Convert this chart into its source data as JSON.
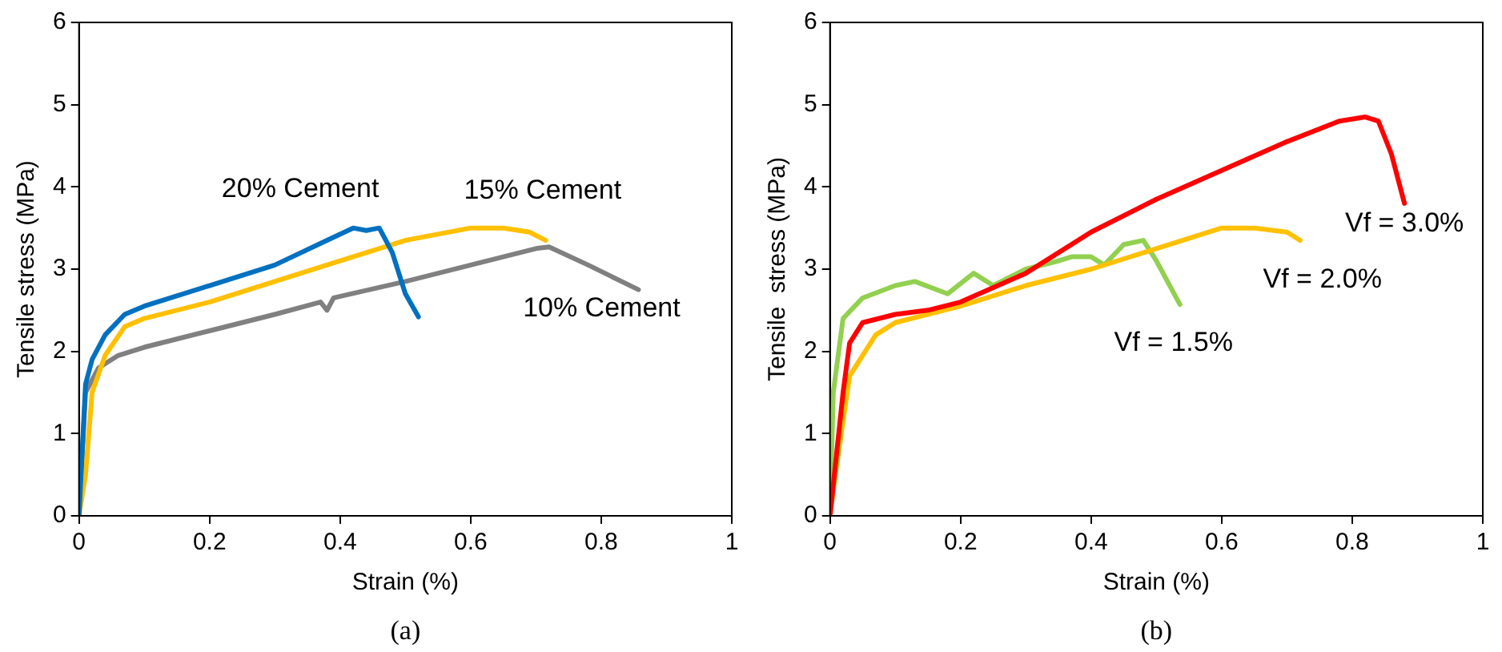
{
  "chart_data": [
    {
      "type": "line",
      "xlabel": "Strain (%)",
      "ylabel": "Tensile stress (MPa)",
      "xlim": [
        0,
        1
      ],
      "ylim": [
        0,
        6
      ],
      "xticks": [
        0,
        0.2,
        0.4,
        0.6,
        0.8,
        1
      ],
      "yticks": [
        0,
        1,
        2,
        3,
        4,
        5,
        6
      ],
      "grid": false,
      "legend": false,
      "marker": "none",
      "line_style": "solid",
      "series": [
        {
          "name": "20% Cement",
          "color": "#0070c0",
          "x": [
            0,
            0.01,
            0.02,
            0.04,
            0.07,
            0.1,
            0.2,
            0.3,
            0.38,
            0.42,
            0.44,
            0.46,
            0.48,
            0.5,
            0.52
          ],
          "values": [
            0,
            1.6,
            1.9,
            2.2,
            2.45,
            2.55,
            2.8,
            3.05,
            3.35,
            3.5,
            3.47,
            3.5,
            3.2,
            2.7,
            2.42
          ]
        },
        {
          "name": "15% Cement",
          "color": "#ffc000",
          "x": [
            0,
            0.01,
            0.02,
            0.04,
            0.07,
            0.1,
            0.2,
            0.3,
            0.4,
            0.5,
            0.6,
            0.65,
            0.69,
            0.715
          ],
          "values": [
            0,
            0.5,
            1.5,
            1.95,
            2.3,
            2.4,
            2.6,
            2.85,
            3.1,
            3.35,
            3.5,
            3.5,
            3.45,
            3.35
          ]
        },
        {
          "name": "10% Cement",
          "color": "#808080",
          "x": [
            0,
            0.01,
            0.03,
            0.06,
            0.1,
            0.2,
            0.3,
            0.37,
            0.38,
            0.39,
            0.5,
            0.6,
            0.7,
            0.72,
            0.78,
            0.857
          ],
          "values": [
            0,
            1.5,
            1.8,
            1.95,
            2.05,
            2.25,
            2.45,
            2.6,
            2.5,
            2.65,
            2.85,
            3.05,
            3.25,
            3.27,
            3.05,
            2.75
          ]
        }
      ],
      "annotations": [
        "(a)"
      ]
    },
    {
      "type": "line",
      "xlabel": "Strain (%)",
      "ylabel": "Tensile  stress (MPa)",
      "xlim": [
        0,
        1
      ],
      "ylim": [
        0,
        6
      ],
      "xticks": [
        0,
        0.2,
        0.4,
        0.6,
        0.8,
        1
      ],
      "yticks": [
        0,
        1,
        2,
        3,
        4,
        5,
        6
      ],
      "grid": false,
      "legend": false,
      "marker": "none",
      "line_style": "solid",
      "series": [
        {
          "name": "Vf = 3.0%",
          "color": "#ff0000",
          "x": [
            0,
            0.02,
            0.03,
            0.05,
            0.1,
            0.15,
            0.2,
            0.3,
            0.4,
            0.5,
            0.6,
            0.7,
            0.78,
            0.82,
            0.84,
            0.86,
            0.88
          ],
          "values": [
            0,
            1.5,
            2.1,
            2.35,
            2.45,
            2.5,
            2.6,
            2.95,
            3.45,
            3.85,
            4.2,
            4.55,
            4.8,
            4.85,
            4.8,
            4.4,
            3.8
          ]
        },
        {
          "name": "Vf = 2.0%",
          "color": "#ffc000",
          "x": [
            0,
            0.01,
            0.03,
            0.07,
            0.1,
            0.2,
            0.3,
            0.4,
            0.5,
            0.6,
            0.65,
            0.7,
            0.72
          ],
          "values": [
            0,
            0.6,
            1.7,
            2.2,
            2.35,
            2.55,
            2.8,
            3.0,
            3.25,
            3.5,
            3.5,
            3.45,
            3.35
          ]
        },
        {
          "name": "Vf = 1.5%",
          "color": "#92d050",
          "x": [
            0,
            0.005,
            0.02,
            0.05,
            0.1,
            0.13,
            0.18,
            0.22,
            0.25,
            0.3,
            0.35,
            0.37,
            0.4,
            0.42,
            0.45,
            0.48,
            0.5,
            0.536
          ],
          "values": [
            0,
            1.5,
            2.4,
            2.65,
            2.8,
            2.85,
            2.7,
            2.95,
            2.8,
            3.0,
            3.1,
            3.15,
            3.15,
            3.05,
            3.3,
            3.35,
            3.1,
            2.57
          ]
        }
      ],
      "annotations": [
        "(b)"
      ]
    }
  ]
}
